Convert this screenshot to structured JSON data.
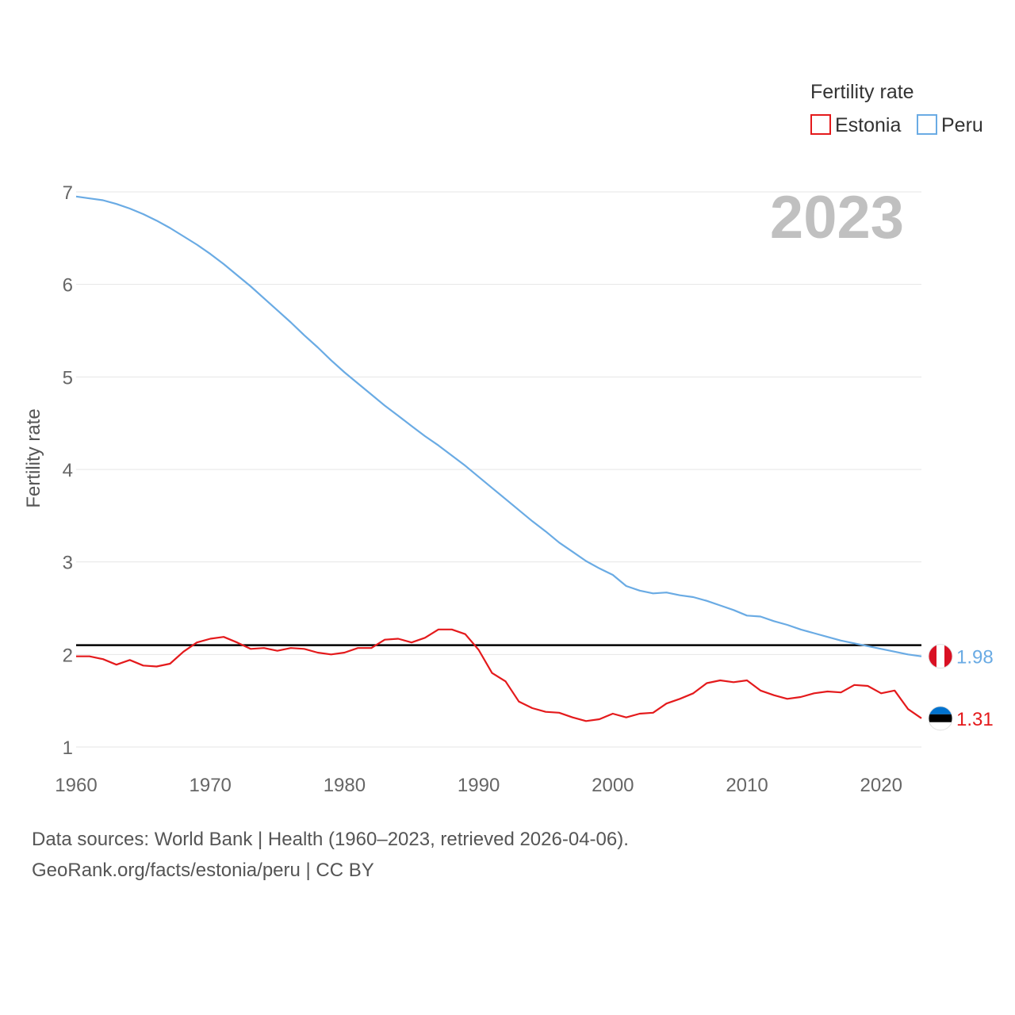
{
  "chart_data": {
    "type": "line",
    "ylabel": "Fertility rate",
    "xlabel": "",
    "xlim": [
      1960,
      2023
    ],
    "ylim": [
      1,
      7
    ],
    "yticks": [
      1,
      2,
      3,
      4,
      5,
      6,
      7
    ],
    "xticks": [
      1960,
      1970,
      1980,
      1990,
      2000,
      2010,
      2020
    ],
    "current_year": "2023",
    "legend": {
      "title": "Fertility rate",
      "position": "top-right"
    },
    "reference_line": {
      "y": 2.1,
      "color": "#000000"
    },
    "x": [
      1960,
      1961,
      1962,
      1963,
      1964,
      1965,
      1966,
      1967,
      1968,
      1969,
      1970,
      1971,
      1972,
      1973,
      1974,
      1975,
      1976,
      1977,
      1978,
      1979,
      1980,
      1981,
      1982,
      1983,
      1984,
      1985,
      1986,
      1987,
      1988,
      1989,
      1990,
      1991,
      1992,
      1993,
      1994,
      1995,
      1996,
      1997,
      1998,
      1999,
      2000,
      2001,
      2002,
      2003,
      2004,
      2005,
      2006,
      2007,
      2008,
      2009,
      2010,
      2011,
      2012,
      2013,
      2014,
      2015,
      2016,
      2017,
      2018,
      2019,
      2020,
      2021,
      2022,
      2023
    ],
    "series": [
      {
        "name": "Estonia",
        "color": "#e41a1c",
        "end_label": "1.31",
        "values": [
          1.98,
          1.98,
          1.95,
          1.89,
          1.94,
          1.88,
          1.87,
          1.9,
          2.03,
          2.13,
          2.17,
          2.19,
          2.13,
          2.06,
          2.07,
          2.04,
          2.07,
          2.06,
          2.02,
          2.0,
          2.02,
          2.07,
          2.07,
          2.16,
          2.17,
          2.13,
          2.18,
          2.27,
          2.27,
          2.22,
          2.05,
          1.8,
          1.71,
          1.49,
          1.42,
          1.38,
          1.37,
          1.32,
          1.28,
          1.3,
          1.36,
          1.32,
          1.36,
          1.37,
          1.47,
          1.52,
          1.58,
          1.69,
          1.72,
          1.7,
          1.72,
          1.61,
          1.56,
          1.52,
          1.54,
          1.58,
          1.6,
          1.59,
          1.67,
          1.66,
          1.58,
          1.61,
          1.41,
          1.31
        ]
      },
      {
        "name": "Peru",
        "color": "#6aabe4",
        "end_label": "1.98",
        "values": [
          6.95,
          6.93,
          6.91,
          6.87,
          6.82,
          6.76,
          6.69,
          6.61,
          6.52,
          6.43,
          6.33,
          6.22,
          6.1,
          5.98,
          5.85,
          5.72,
          5.59,
          5.45,
          5.32,
          5.18,
          5.05,
          4.93,
          4.81,
          4.69,
          4.58,
          4.47,
          4.36,
          4.26,
          4.15,
          4.04,
          3.92,
          3.8,
          3.68,
          3.56,
          3.44,
          3.33,
          3.21,
          3.11,
          3.01,
          2.93,
          2.86,
          2.74,
          2.69,
          2.66,
          2.67,
          2.64,
          2.62,
          2.58,
          2.53,
          2.48,
          2.42,
          2.41,
          2.36,
          2.32,
          2.27,
          2.23,
          2.19,
          2.15,
          2.12,
          2.09,
          2.06,
          2.03,
          2.0,
          1.98
        ]
      }
    ]
  },
  "footer": {
    "source": "Data sources: World Bank | Health (1960–2023, retrieved 2026-04-06).",
    "credit": "GeoRank.org/facts/estonia/peru | CC BY"
  }
}
